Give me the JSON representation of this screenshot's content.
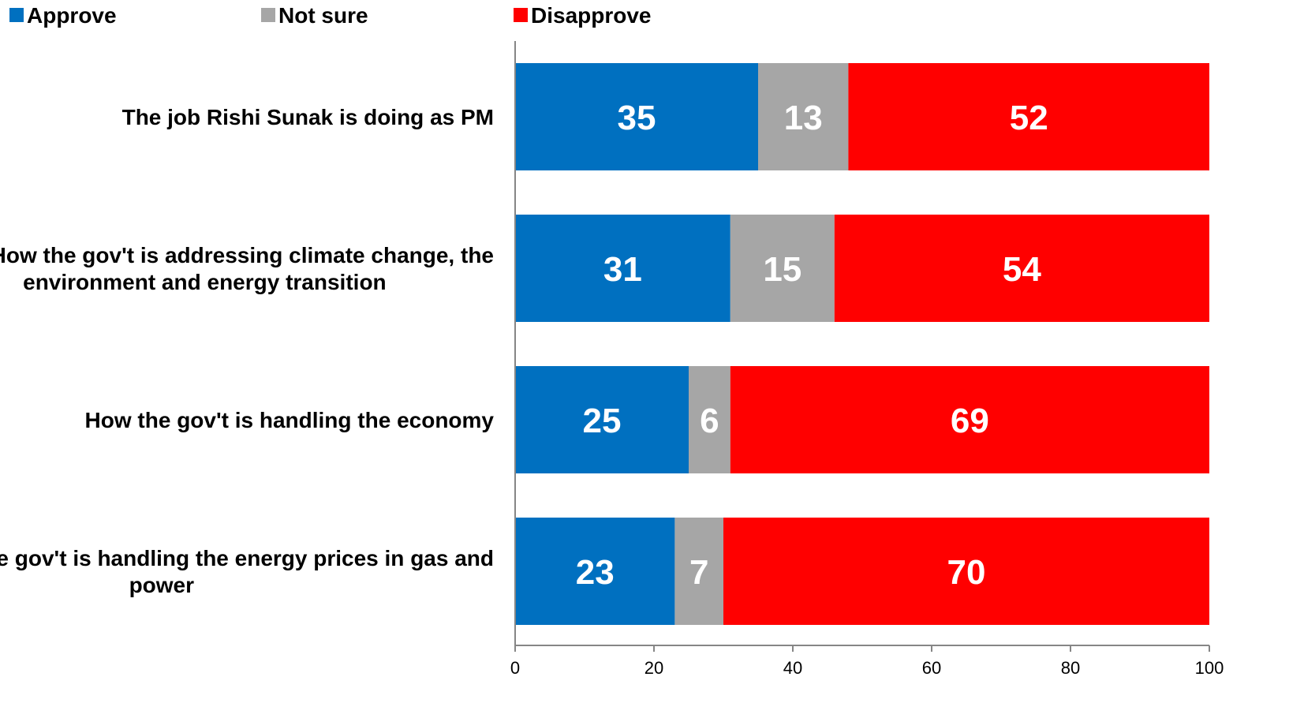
{
  "chart_data": {
    "type": "bar",
    "orientation": "horizontal",
    "stacked": true,
    "title": "",
    "xlabel": "",
    "ylabel": "",
    "xlim": [
      0,
      100
    ],
    "x_ticks": [
      "0",
      "20",
      "40",
      "60",
      "80",
      "100"
    ],
    "grid": false,
    "legend_position": "top-left",
    "categories": [
      [
        "The job Rishi Sunak is doing as PM"
      ],
      [
        "How the gov't is addressing climate change, the",
        "environment and energy transition"
      ],
      [
        "How the gov't is handling the economy"
      ],
      [
        "How the gov't is handling the energy prices in gas and",
        "power"
      ]
    ],
    "series": [
      {
        "name": "Approve",
        "color": "#0070C0",
        "values": [
          35,
          31,
          25,
          23
        ]
      },
      {
        "name": "Not sure",
        "color": "#A6A6A6",
        "values": [
          13,
          15,
          6,
          7
        ]
      },
      {
        "name": "Disapprove",
        "color": "#FF0000",
        "values": [
          52,
          54,
          69,
          70
        ]
      }
    ]
  }
}
